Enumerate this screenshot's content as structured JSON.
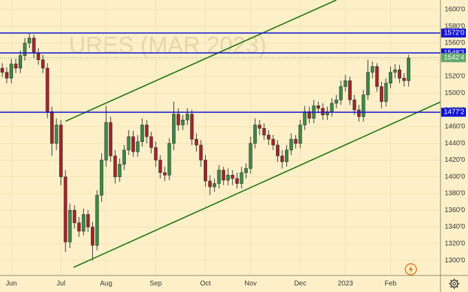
{
  "chart_data": {
    "type": "candlestick",
    "watermark": "URES (MAR 2023)",
    "categories": [
      null,
      null,
      "Jun",
      null,
      null,
      null,
      null,
      null,
      null,
      null,
      null,
      null,
      null,
      "Jul",
      null,
      null,
      null,
      null,
      null,
      null,
      null,
      null,
      null,
      "Aug",
      null,
      null,
      null,
      null,
      null,
      null,
      null,
      null,
      null,
      null,
      "Sep",
      null,
      null,
      null,
      null,
      null,
      null,
      null,
      null,
      null,
      null,
      "Oct",
      null,
      null,
      null,
      null,
      null,
      null,
      null,
      null,
      null,
      "Nov",
      null,
      null,
      null,
      null,
      null,
      null,
      null,
      null,
      null,
      null,
      "Dec",
      null,
      null,
      null,
      null,
      null,
      null,
      null,
      null,
      null,
      "2023",
      null,
      null,
      null,
      null,
      null,
      null,
      null,
      null,
      null,
      "Feb",
      null,
      null,
      null,
      null
    ],
    "open": [
      1530,
      1525,
      1518,
      1535,
      1530,
      1545,
      1560,
      1566,
      1548,
      1540,
      1530,
      1478,
      1440,
      1462,
      1400,
      1322,
      1360,
      1345,
      1335,
      1355,
      1340,
      1318,
      1378,
      1420,
      1465,
      1425,
      1400,
      1415,
      1432,
      1448,
      1430,
      1442,
      1462,
      1448,
      1435,
      1420,
      1405,
      1402,
      1440,
      1475,
      1462,
      1468,
      1475,
      1445,
      1438,
      1420,
      1395,
      1388,
      1392,
      1408,
      1396,
      1402,
      1398,
      1392,
      1405,
      1410,
      1440,
      1462,
      1458,
      1450,
      1445,
      1438,
      1425,
      1418,
      1432,
      1445,
      1440,
      1462,
      1478,
      1470,
      1485,
      1482,
      1474,
      1478,
      1488,
      1492,
      1508,
      1515,
      1492,
      1480,
      1472,
      1498,
      1525,
      1532,
      1508,
      1490,
      1512,
      1525,
      1528,
      1518,
      1515
    ],
    "high": [
      1536,
      1531,
      1541,
      1541,
      1551,
      1566,
      1572,
      1570,
      1554,
      1546,
      1536,
      1484,
      1470,
      1468,
      1408,
      1368,
      1366,
      1352,
      1362,
      1360,
      1346,
      1384,
      1428,
      1485,
      1472,
      1432,
      1422,
      1438,
      1456,
      1455,
      1450,
      1470,
      1468,
      1454,
      1442,
      1426,
      1412,
      1446,
      1490,
      1482,
      1474,
      1482,
      1480,
      1452,
      1444,
      1426,
      1402,
      1398,
      1414,
      1412,
      1410,
      1408,
      1405,
      1412,
      1416,
      1448,
      1470,
      1468,
      1464,
      1456,
      1450,
      1444,
      1432,
      1438,
      1452,
      1450,
      1468,
      1485,
      1484,
      1492,
      1490,
      1488,
      1484,
      1494,
      1498,
      1515,
      1522,
      1520,
      1498,
      1486,
      1504,
      1540,
      1538,
      1536,
      1514,
      1518,
      1532,
      1535,
      1534,
      1524,
      1546
    ],
    "low": [
      1519,
      1512,
      1512,
      1524,
      1524,
      1539,
      1554,
      1542,
      1534,
      1524,
      1470,
      1425,
      1432,
      1390,
      1310,
      1315,
      1338,
      1328,
      1330,
      1334,
      1300,
      1312,
      1370,
      1412,
      1418,
      1392,
      1394,
      1408,
      1426,
      1424,
      1424,
      1436,
      1440,
      1428,
      1412,
      1398,
      1395,
      1396,
      1432,
      1455,
      1456,
      1462,
      1438,
      1430,
      1412,
      1388,
      1378,
      1382,
      1386,
      1390,
      1390,
      1390,
      1386,
      1386,
      1398,
      1404,
      1434,
      1450,
      1444,
      1438,
      1432,
      1418,
      1410,
      1412,
      1426,
      1434,
      1434,
      1456,
      1464,
      1464,
      1476,
      1468,
      1468,
      1472,
      1482,
      1486,
      1502,
      1486,
      1474,
      1466,
      1466,
      1492,
      1518,
      1502,
      1482,
      1484,
      1506,
      1518,
      1512,
      1508,
      1508
    ],
    "close": [
      1525,
      1518,
      1535,
      1530,
      1545,
      1560,
      1566,
      1548,
      1540,
      1530,
      1478,
      1440,
      1462,
      1400,
      1322,
      1360,
      1345,
      1335,
      1355,
      1340,
      1318,
      1378,
      1420,
      1465,
      1425,
      1400,
      1415,
      1432,
      1448,
      1430,
      1442,
      1462,
      1448,
      1435,
      1420,
      1405,
      1402,
      1440,
      1475,
      1462,
      1468,
      1475,
      1445,
      1438,
      1420,
      1395,
      1388,
      1392,
      1408,
      1396,
      1402,
      1398,
      1392,
      1405,
      1410,
      1440,
      1462,
      1458,
      1450,
      1445,
      1438,
      1425,
      1418,
      1432,
      1445,
      1440,
      1462,
      1478,
      1470,
      1485,
      1482,
      1474,
      1478,
      1488,
      1492,
      1508,
      1515,
      1492,
      1480,
      1472,
      1498,
      1525,
      1532,
      1508,
      1490,
      1512,
      1525,
      1528,
      1518,
      1515,
      1542
    ],
    "up_color": "#3d8a47",
    "down_color": "#a3252b",
    "ylim": [
      1282,
      1611.5
    ],
    "yticks": [
      {
        "value": 1300,
        "label": "1300'0"
      },
      {
        "value": 1320,
        "label": "1320'0"
      },
      {
        "value": 1340,
        "label": "1340'0"
      },
      {
        "value": 1360,
        "label": "1360'0"
      },
      {
        "value": 1380,
        "label": "1380'0"
      },
      {
        "value": 1400,
        "label": "1400'0"
      },
      {
        "value": 1420,
        "label": "1420'0"
      },
      {
        "value": 1440,
        "label": "1440'0"
      },
      {
        "value": 1460,
        "label": "1460'0"
      },
      {
        "value": 1480,
        "label": "1480'0"
      },
      {
        "value": 1500,
        "label": "1500'0"
      },
      {
        "value": 1520,
        "label": "1520'0"
      },
      {
        "value": 1540,
        "label": "1540'0"
      },
      {
        "value": 1560,
        "label": "1560'0"
      },
      {
        "value": 1580,
        "label": "1580'0"
      },
      {
        "value": 1600,
        "label": "1600'0"
      }
    ],
    "hlines": [
      {
        "value": 1572,
        "label": "1572'0",
        "color": "#1414d4"
      },
      {
        "value": 1548.25,
        "label": "1548'2",
        "color": "#1414d4"
      },
      {
        "value": 1477.25,
        "label": "1477'2",
        "color": "#1414d4"
      },
      {
        "value": 1542.5,
        "label": "1542'4",
        "color": "#5fa86a",
        "style": "dotted"
      }
    ],
    "trend_lines": [
      {
        "x": [
          14,
          74
        ],
        "y": [
          1466.5,
          1611.5
        ],
        "color": "#2b7a1a"
      },
      {
        "x": [
          15.8,
          97.1
        ],
        "y": [
          1291.7,
          1489.6
        ],
        "color": "#2b7a1a"
      }
    ]
  }
}
